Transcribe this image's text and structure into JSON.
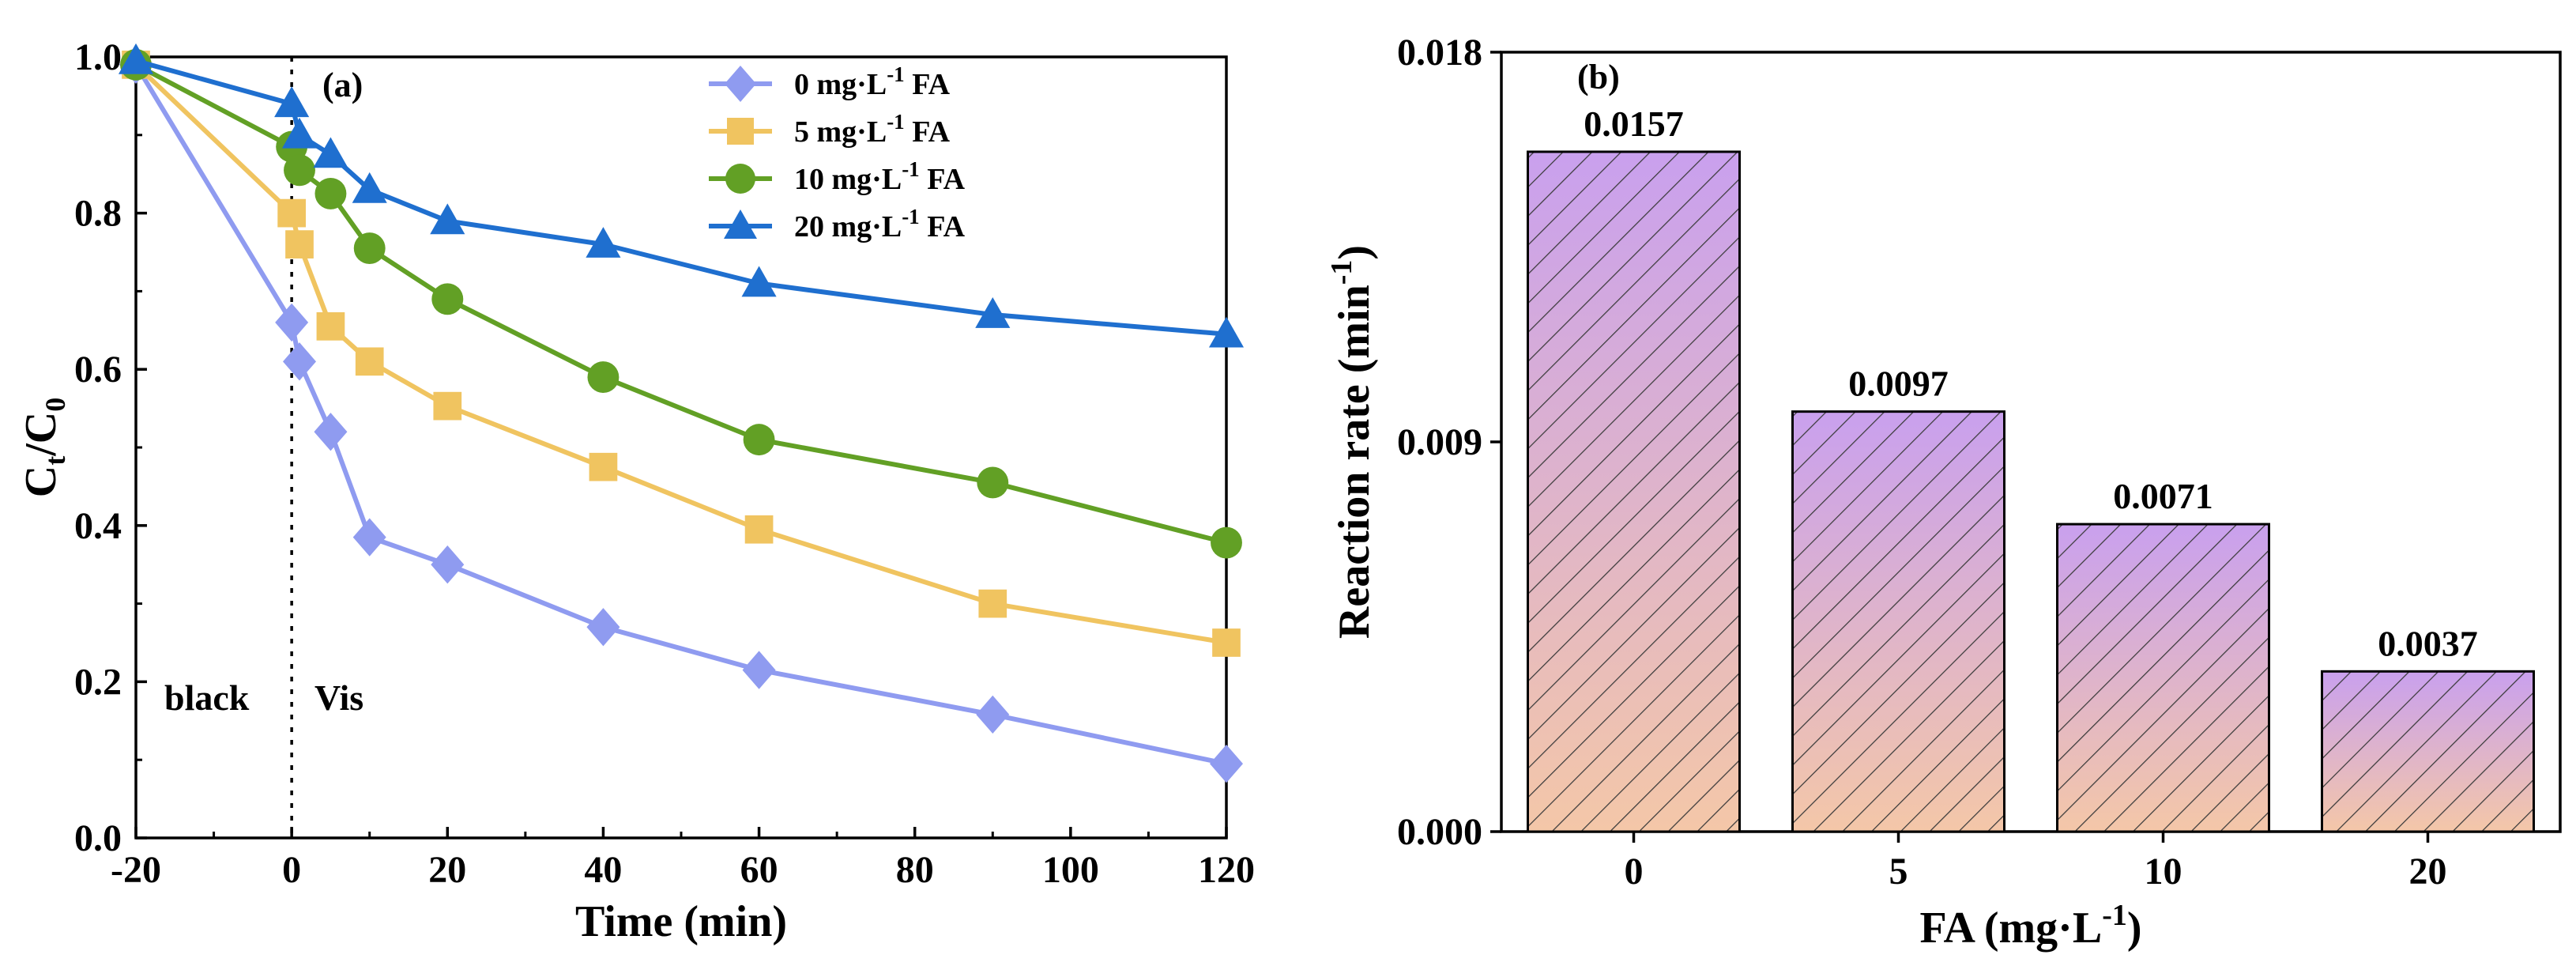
{
  "chart_data": [
    {
      "type": "line",
      "panel_label": "(a)",
      "xlabel": "Time (min)",
      "ylabel_main": "C",
      "ylabel_sub1": "t",
      "ylabel_sep": "/C",
      "ylabel_sub2": "0",
      "xlim": [
        -20,
        120
      ],
      "ylim": [
        0,
        1.0
      ],
      "xticks": [
        "-20",
        "0",
        "20",
        "40",
        "60",
        "80",
        "100",
        "120"
      ],
      "xtick_values": [
        -20,
        0,
        20,
        40,
        60,
        80,
        100,
        120
      ],
      "yticks": [
        "0.0",
        "0.2",
        "0.4",
        "0.6",
        "0.8",
        "1.0"
      ],
      "ytick_values": [
        0,
        0.2,
        0.4,
        0.6,
        0.8,
        1.0
      ],
      "annotations": {
        "dark": "black",
        "light": "Vis",
        "divider_x": 0
      },
      "legend_position": "top-right",
      "series": [
        {
          "name_prefix": "0 mg·L",
          "name_sup": "-1",
          "name_suffix": " FA",
          "marker": "diamond",
          "color": "#8f9bf0",
          "x": [
            -20,
            0,
            1,
            5,
            10,
            20,
            40,
            60,
            90,
            120
          ],
          "y": [
            0.99,
            0.66,
            0.61,
            0.52,
            0.385,
            0.35,
            0.27,
            0.215,
            0.158,
            0.095
          ]
        },
        {
          "name_prefix": "5 mg·L",
          "name_sup": "-1",
          "name_suffix": " FA",
          "marker": "square",
          "color": "#f0c460",
          "x": [
            -20,
            0,
            1,
            5,
            10,
            20,
            40,
            60,
            90,
            120
          ],
          "y": [
            0.99,
            0.8,
            0.76,
            0.655,
            0.61,
            0.553,
            0.475,
            0.395,
            0.3,
            0.25
          ]
        },
        {
          "name_prefix": "10 mg·L",
          "name_sup": "-1",
          "name_suffix": " FA",
          "marker": "circle",
          "color": "#62a025",
          "x": [
            -20,
            0,
            1,
            5,
            10,
            20,
            40,
            60,
            90,
            120
          ],
          "y": [
            0.99,
            0.885,
            0.855,
            0.825,
            0.755,
            0.69,
            0.59,
            0.51,
            0.455,
            0.378
          ]
        },
        {
          "name_prefix": "20 mg·L",
          "name_sup": "-1",
          "name_suffix": " FA",
          "marker": "triangle",
          "color": "#1f6fcf",
          "x": [
            -20,
            0,
            1,
            5,
            10,
            20,
            40,
            60,
            90,
            120
          ],
          "y": [
            0.995,
            0.94,
            0.9,
            0.875,
            0.83,
            0.79,
            0.76,
            0.71,
            0.67,
            0.645
          ]
        }
      ]
    },
    {
      "type": "bar",
      "panel_label": "(b)",
      "xlabel_prefix": "FA (mg·L",
      "xlabel_sup": "-1",
      "xlabel_suffix": ")",
      "ylabel_prefix": "Reaction rate (min",
      "ylabel_sup": "-1",
      "ylabel_suffix": ")",
      "categories": [
        "0",
        "5",
        "10",
        "20"
      ],
      "values": [
        0.0157,
        0.0097,
        0.0071,
        0.0037
      ],
      "value_labels": [
        "0.0157",
        "0.0097",
        "0.0071",
        "0.0037"
      ],
      "ylim": [
        0,
        0.018
      ],
      "yticks": [
        "0.000",
        "0.009",
        "0.018"
      ],
      "ytick_values": [
        0,
        0.009,
        0.018
      ],
      "fill_top_color": "#c9a0ee",
      "fill_bottom_color": "#f4c7a8",
      "hatch": "diagonal"
    }
  ]
}
